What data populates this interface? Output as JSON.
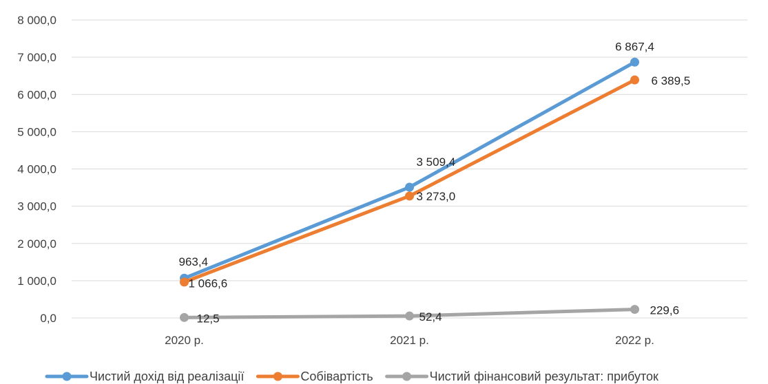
{
  "chart_data": {
    "type": "line",
    "categories": [
      "2020 р.",
      "2021 р.",
      "2022 р."
    ],
    "ylim": [
      0,
      8000
    ],
    "ytick_labels": [
      "0,0",
      "1 000,0",
      "2 000,0",
      "3 000,0",
      "4 000,0",
      "5 000,0",
      "6 000,0",
      "7 000,0",
      "8 000,0"
    ],
    "grid": true,
    "legend_position": "bottom",
    "series": [
      {
        "name": "Чистий дохід від реалізації",
        "values": [
          1066.6,
          3509.4,
          6867.4
        ],
        "labels": [
          "1 066,6",
          "3 509,4",
          "6 867,4"
        ],
        "color": "#5B9BD5"
      },
      {
        "name": "Собівартість",
        "values": [
          963.4,
          3273.0,
          6389.5
        ],
        "labels": [
          "963,4",
          "3 273,0",
          "6 389,5"
        ],
        "color": "#ED7D31"
      },
      {
        "name": "Чистий фінансовий результат: прибуток",
        "values": [
          12.5,
          52.4,
          229.6
        ],
        "labels": [
          "12,5",
          "52,4",
          "229,6"
        ],
        "color": "#A5A5A5"
      }
    ]
  }
}
